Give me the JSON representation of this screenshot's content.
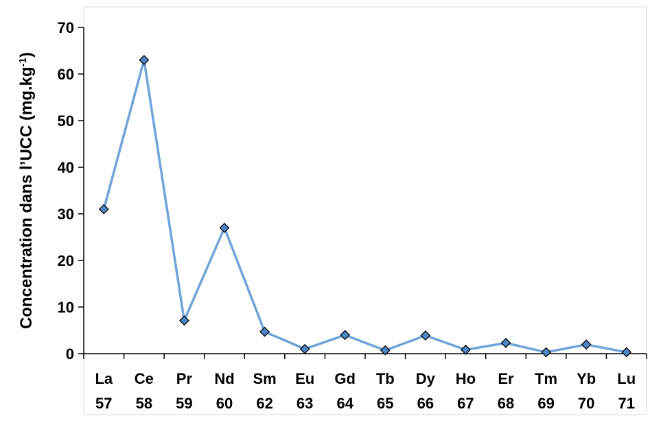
{
  "chart_data": {
    "type": "line",
    "title": "",
    "xlabel": "",
    "ylabel_main": "Concentration dans l’UCC (mg.kg",
    "ylabel_sup": "-1",
    "ylabel_end": ")",
    "ylim": [
      0,
      70
    ],
    "yticks": [
      0,
      10,
      20,
      30,
      40,
      50,
      60,
      70
    ],
    "grid": false,
    "legend": "none",
    "categories": [
      {
        "element": "La",
        "number": "57"
      },
      {
        "element": "Ce",
        "number": "58"
      },
      {
        "element": "Pr",
        "number": "59"
      },
      {
        "element": "Nd",
        "number": "60"
      },
      {
        "element": "Sm",
        "number": "62"
      },
      {
        "element": "Eu",
        "number": "63"
      },
      {
        "element": "Gd",
        "number": "64"
      },
      {
        "element": "Tb",
        "number": "65"
      },
      {
        "element": "Dy",
        "number": "66"
      },
      {
        "element": "Ho",
        "number": "67"
      },
      {
        "element": "Er",
        "number": "68"
      },
      {
        "element": "Tm",
        "number": "69"
      },
      {
        "element": "Yb",
        "number": "70"
      },
      {
        "element": "Lu",
        "number": "71"
      }
    ],
    "series": [
      {
        "values": [
          31,
          63,
          7.1,
          27,
          4.7,
          1.0,
          4.0,
          0.7,
          3.9,
          0.83,
          2.3,
          0.3,
          1.96,
          0.31
        ],
        "line_color": "#6fa4d8",
        "marker_fill": "#4f86c6",
        "marker_stroke": "#000000"
      }
    ]
  }
}
